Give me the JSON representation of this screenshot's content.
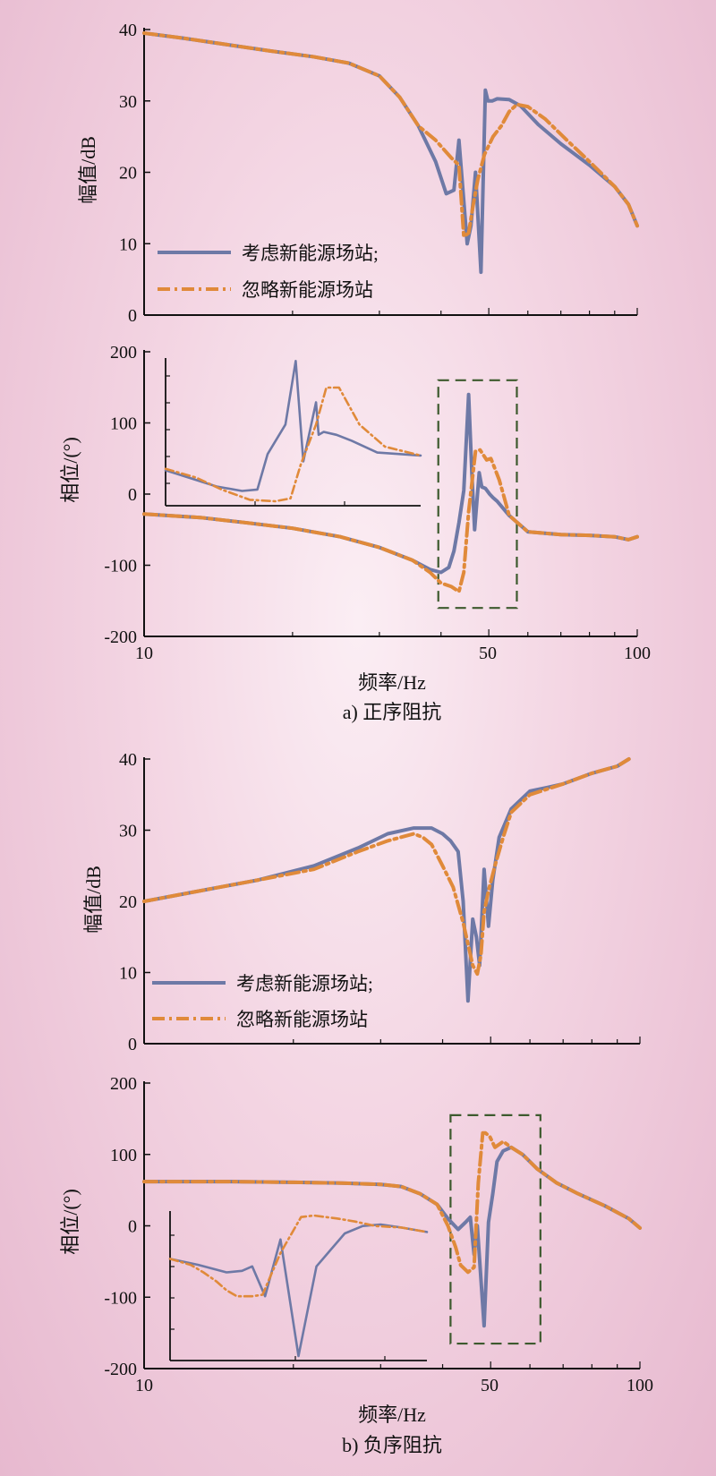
{
  "colors": {
    "solid": "#6e79a6",
    "dash": "#e08a3a",
    "box": "#3d5a2e",
    "axis": "#111111"
  },
  "figure": {
    "panel_a": {
      "caption": "a) 正序阻抗",
      "xlabel": "频率/Hz",
      "x_tick_labels": [
        "10",
        "50",
        "100"
      ],
      "legend": {
        "solid": "考虑新能源场站;",
        "dash": "忽略新能源场站"
      }
    },
    "panel_b": {
      "caption": "b) 负序阻抗",
      "xlabel": "频率/Hz",
      "x_tick_labels": [
        "10",
        "50",
        "100"
      ],
      "legend": {
        "solid": "考虑新能源场站;",
        "dash": "忽略新能源场站"
      }
    }
  },
  "chart_data": [
    {
      "type": "line",
      "id": "a_mag",
      "panel": "a",
      "xlabel": "",
      "ylabel": "幅值/dB",
      "xscale": "log",
      "xlim": [
        10,
        100
      ],
      "ylim": [
        0,
        40
      ],
      "y_ticks": [
        0,
        10,
        20,
        30,
        40
      ],
      "legend_position": "bottom-left",
      "series": [
        {
          "name": "考虑新能源场站;",
          "style": "solid",
          "x": [
            10,
            12,
            15,
            18,
            22,
            26,
            30,
            33,
            36,
            39,
            41,
            42.5,
            43.5,
            44.5,
            45.2,
            46,
            47,
            48.2,
            49.2,
            49.8,
            50.8,
            52,
            55,
            58,
            63,
            70,
            80,
            90,
            96,
            100
          ],
          "y": [
            39.5,
            38.8,
            37.8,
            37,
            36.2,
            35.3,
            33.5,
            30.5,
            26.5,
            21.5,
            17,
            17.5,
            24.5,
            16,
            10,
            12.5,
            20,
            6,
            31.5,
            30,
            30,
            30.3,
            30.2,
            29.3,
            26.7,
            24,
            21,
            18,
            15.5,
            12.5
          ]
        },
        {
          "name": "忽略新能源场站",
          "style": "dash",
          "x": [
            10,
            12,
            15,
            18,
            22,
            26,
            30,
            33,
            36,
            39,
            42,
            43.5,
            44.5,
            45.5,
            46.5,
            47.5,
            49,
            51,
            53,
            55,
            57,
            60,
            65,
            72,
            80,
            90,
            96,
            100
          ],
          "y": [
            39.5,
            38.8,
            37.8,
            37,
            36.2,
            35.3,
            33.5,
            30.5,
            26.5,
            24.5,
            22,
            21,
            11,
            11.5,
            15.5,
            19,
            22.5,
            25,
            26.5,
            28.5,
            29.5,
            29.2,
            27.5,
            24.5,
            21.5,
            18,
            15.5,
            12.5
          ]
        }
      ]
    },
    {
      "type": "line",
      "id": "a_phase",
      "panel": "a",
      "xlabel": "频率/Hz",
      "ylabel": "相位/(°)",
      "xscale": "log",
      "xlim": [
        10,
        100
      ],
      "ylim": [
        -200,
        200
      ],
      "y_ticks": [
        -200,
        -100,
        0,
        100,
        200
      ],
      "highlight_box": {
        "x": [
          39.5,
          57
        ],
        "y": [
          -160,
          160
        ]
      },
      "series": [
        {
          "name": "考虑新能源场站;",
          "style": "solid",
          "x": [
            10,
            13,
            16,
            20,
            25,
            30,
            35,
            38,
            40,
            41.5,
            42.5,
            43.5,
            44.5,
            45.5,
            46.2,
            46.8,
            47.8,
            48.4,
            49.2,
            50.2,
            51,
            52,
            55,
            60,
            70,
            80,
            90,
            96,
            100
          ],
          "y": [
            -28,
            -33,
            -40,
            -48,
            -60,
            -75,
            -93,
            -106,
            -110,
            -103,
            -80,
            -40,
            5,
            140,
            30,
            -50,
            30,
            10,
            8,
            0,
            -5,
            -10,
            -30,
            -53,
            -57,
            -58,
            -60,
            -64,
            -60
          ]
        },
        {
          "name": "忽略新能源场站",
          "style": "dash",
          "x": [
            10,
            13,
            16,
            20,
            25,
            30,
            35,
            38,
            40,
            42,
            43.5,
            44.5,
            45.5,
            47,
            48,
            49.5,
            50.5,
            51.5,
            52.5,
            53.5,
            55,
            60,
            70,
            80,
            90,
            96,
            100
          ],
          "y": [
            -28,
            -33,
            -40,
            -48,
            -60,
            -75,
            -93,
            -110,
            -125,
            -130,
            -137,
            -110,
            -25,
            60,
            62,
            48,
            50,
            35,
            20,
            0,
            -30,
            -53,
            -57,
            -58,
            -60,
            -64,
            -60
          ]
        }
      ]
    },
    {
      "type": "line",
      "id": "a_inset",
      "panel": "a",
      "inset": true,
      "xlabel": "",
      "ylabel": "",
      "xlim": [
        0,
        1
      ],
      "ylim": [
        0,
        1
      ],
      "series": [
        {
          "name": "考虑新能源场站;",
          "style": "solid",
          "x": [
            0,
            0.2,
            0.3,
            0.36,
            0.4,
            0.47,
            0.51,
            0.54,
            0.59,
            0.6,
            0.62,
            0.67,
            0.73,
            0.83,
            1
          ],
          "y": [
            0.24,
            0.13,
            0.1,
            0.11,
            0.35,
            0.55,
            0.98,
            0.3,
            0.7,
            0.48,
            0.5,
            0.48,
            0.44,
            0.36,
            0.34
          ]
        },
        {
          "name": "忽略新能源场站",
          "style": "dash",
          "x": [
            0,
            0.12,
            0.22,
            0.33,
            0.43,
            0.49,
            0.53,
            0.59,
            0.63,
            0.68,
            0.76,
            0.86,
            1
          ],
          "y": [
            0.25,
            0.19,
            0.11,
            0.04,
            0.03,
            0.05,
            0.28,
            0.55,
            0.8,
            0.8,
            0.55,
            0.4,
            0.34
          ]
        }
      ]
    },
    {
      "type": "line",
      "id": "b_mag",
      "panel": "b",
      "xlabel": "",
      "ylabel": "幅值/dB",
      "xscale": "log",
      "xlim": [
        10,
        100
      ],
      "ylim": [
        0,
        40
      ],
      "y_ticks": [
        0,
        10,
        20,
        30,
        40
      ],
      "legend_position": "bottom-left",
      "series": [
        {
          "name": "考虑新能源场站;",
          "style": "solid",
          "x": [
            10,
            13,
            17,
            22,
            27,
            31,
            35,
            38,
            40,
            41.5,
            43,
            44,
            45,
            46,
            46.8,
            47.5,
            48.5,
            49.5,
            50.5,
            52,
            55,
            60,
            65,
            70,
            80,
            90,
            95
          ],
          "y": [
            20,
            21.5,
            23,
            25,
            27.5,
            29.5,
            30.3,
            30.3,
            29.5,
            28.5,
            27,
            20,
            6,
            17.5,
            15,
            11,
            24.5,
            16.5,
            23,
            29,
            33,
            35.5,
            36,
            36.5,
            38,
            39,
            40
          ]
        },
        {
          "name": "忽略新能源场站",
          "style": "dash",
          "x": [
            10,
            13,
            17,
            22,
            27,
            31,
            35,
            36.5,
            38,
            40,
            42,
            44,
            45,
            46,
            47,
            47.8,
            48.5,
            49.5,
            51,
            53,
            55,
            60,
            70,
            80,
            90,
            95
          ],
          "y": [
            20,
            21.5,
            23,
            24.5,
            27,
            28.5,
            29.5,
            29,
            28,
            25,
            22,
            17,
            14,
            11,
            9.8,
            12.5,
            18.5,
            21.5,
            25,
            29,
            32.5,
            35,
            36.5,
            38,
            39,
            40
          ]
        }
      ]
    },
    {
      "type": "line",
      "id": "b_phase",
      "panel": "b",
      "xlabel": "频率/Hz",
      "ylabel": "相位/(°)",
      "xscale": "log",
      "xlim": [
        10,
        100
      ],
      "ylim": [
        -200,
        200
      ],
      "y_ticks": [
        -200,
        -100,
        0,
        100,
        200
      ],
      "highlight_box": {
        "x": [
          41.5,
          63
        ],
        "y": [
          -165,
          155
        ]
      },
      "series": [
        {
          "name": "考虑新能源场站;",
          "style": "solid",
          "x": [
            10,
            15,
            20,
            25,
            30,
            33,
            36,
            39,
            41,
            43,
            44.5,
            45.5,
            46.3,
            47,
            48.5,
            49.5,
            50.5,
            51.5,
            53,
            55,
            58,
            62,
            68,
            75,
            85,
            95,
            100
          ],
          "y": [
            62,
            62,
            61,
            60,
            58,
            55,
            45,
            30,
            10,
            -5,
            5,
            12,
            -40,
            0,
            -140,
            5,
            45,
            90,
            105,
            110,
            100,
            80,
            60,
            45,
            28,
            10,
            -3
          ]
        },
        {
          "name": "忽略新能源场站",
          "style": "dash",
          "x": [
            10,
            15,
            20,
            25,
            30,
            33,
            36,
            39,
            41,
            42.5,
            43.5,
            45,
            46.3,
            47.2,
            48.2,
            48.8,
            49.8,
            51,
            53,
            55,
            58,
            62,
            68,
            75,
            85,
            95,
            100
          ],
          "y": [
            62,
            62,
            61,
            60,
            58,
            55,
            45,
            30,
            0,
            -30,
            -55,
            -65,
            -58,
            60,
            130,
            130,
            125,
            110,
            118,
            110,
            100,
            80,
            60,
            45,
            28,
            10,
            -3
          ]
        }
      ]
    },
    {
      "type": "line",
      "id": "b_inset",
      "panel": "b",
      "inset": true,
      "xlabel": "",
      "ylabel": "",
      "xlim": [
        0,
        1
      ],
      "ylim": [
        0,
        1
      ],
      "series": [
        {
          "name": "考虑新能源场站;",
          "style": "solid",
          "x": [
            0,
            0.11,
            0.22,
            0.28,
            0.32,
            0.37,
            0.43,
            0.5,
            0.57,
            0.62,
            0.68,
            0.75,
            0.82,
            0.9,
            1
          ],
          "y": [
            0.68,
            0.64,
            0.59,
            0.6,
            0.63,
            0.43,
            0.81,
            0.03,
            0.63,
            0.73,
            0.85,
            0.9,
            0.91,
            0.89,
            0.86
          ]
        },
        {
          "name": "忽略新能源场站",
          "style": "dash",
          "x": [
            0,
            0.08,
            0.13,
            0.18,
            0.22,
            0.26,
            0.32,
            0.36,
            0.43,
            0.51,
            0.56,
            0.65,
            0.72,
            0.8,
            0.9,
            1
          ],
          "y": [
            0.68,
            0.64,
            0.59,
            0.53,
            0.47,
            0.43,
            0.43,
            0.44,
            0.72,
            0.96,
            0.97,
            0.95,
            0.93,
            0.9,
            0.89,
            0.86
          ]
        }
      ]
    }
  ]
}
